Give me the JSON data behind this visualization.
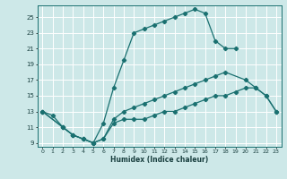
{
  "xlabel": "Humidex (Indice chaleur)",
  "bg_color": "#cde8e8",
  "grid_color": "#ffffff",
  "line_color": "#1a7070",
  "xlim": [
    -0.5,
    23.5
  ],
  "ylim": [
    8.5,
    26.5
  ],
  "xticks": [
    0,
    1,
    2,
    3,
    4,
    5,
    6,
    7,
    8,
    9,
    10,
    11,
    12,
    13,
    14,
    15,
    16,
    17,
    18,
    19,
    20,
    21,
    22,
    23
  ],
  "yticks": [
    9,
    11,
    13,
    15,
    17,
    19,
    21,
    23,
    25
  ],
  "line1_x": [
    0,
    1,
    2,
    3,
    4,
    5,
    6,
    7,
    8,
    9,
    10,
    11,
    12,
    13,
    14,
    15,
    16,
    17,
    18,
    19
  ],
  "line1_y": [
    13,
    12.5,
    11,
    10,
    9.5,
    9,
    11.5,
    16,
    19.5,
    23,
    23.5,
    24,
    24.5,
    25,
    25.5,
    26,
    25.5,
    22,
    21,
    21
  ],
  "line2_x": [
    0,
    2,
    3,
    4,
    5,
    6,
    7,
    8,
    9,
    10,
    11,
    12,
    13,
    14,
    15,
    16,
    17,
    18,
    20,
    21,
    22,
    23
  ],
  "line2_y": [
    13,
    11,
    10,
    9.5,
    9,
    9.5,
    12,
    13,
    13.5,
    14,
    14.5,
    15,
    15.5,
    16,
    16.5,
    17,
    17.5,
    18,
    17,
    16,
    15,
    13
  ],
  "line3_x": [
    0,
    2,
    3,
    4,
    5,
    6,
    7,
    8,
    9,
    10,
    11,
    12,
    13,
    14,
    15,
    16,
    17,
    18,
    19,
    20,
    21,
    22,
    23
  ],
  "line3_y": [
    13,
    11,
    10,
    9.5,
    9,
    9.5,
    11.5,
    12,
    12,
    12,
    12.5,
    13,
    13,
    13.5,
    14,
    14.5,
    15,
    15,
    15.5,
    16,
    16,
    15,
    13
  ]
}
